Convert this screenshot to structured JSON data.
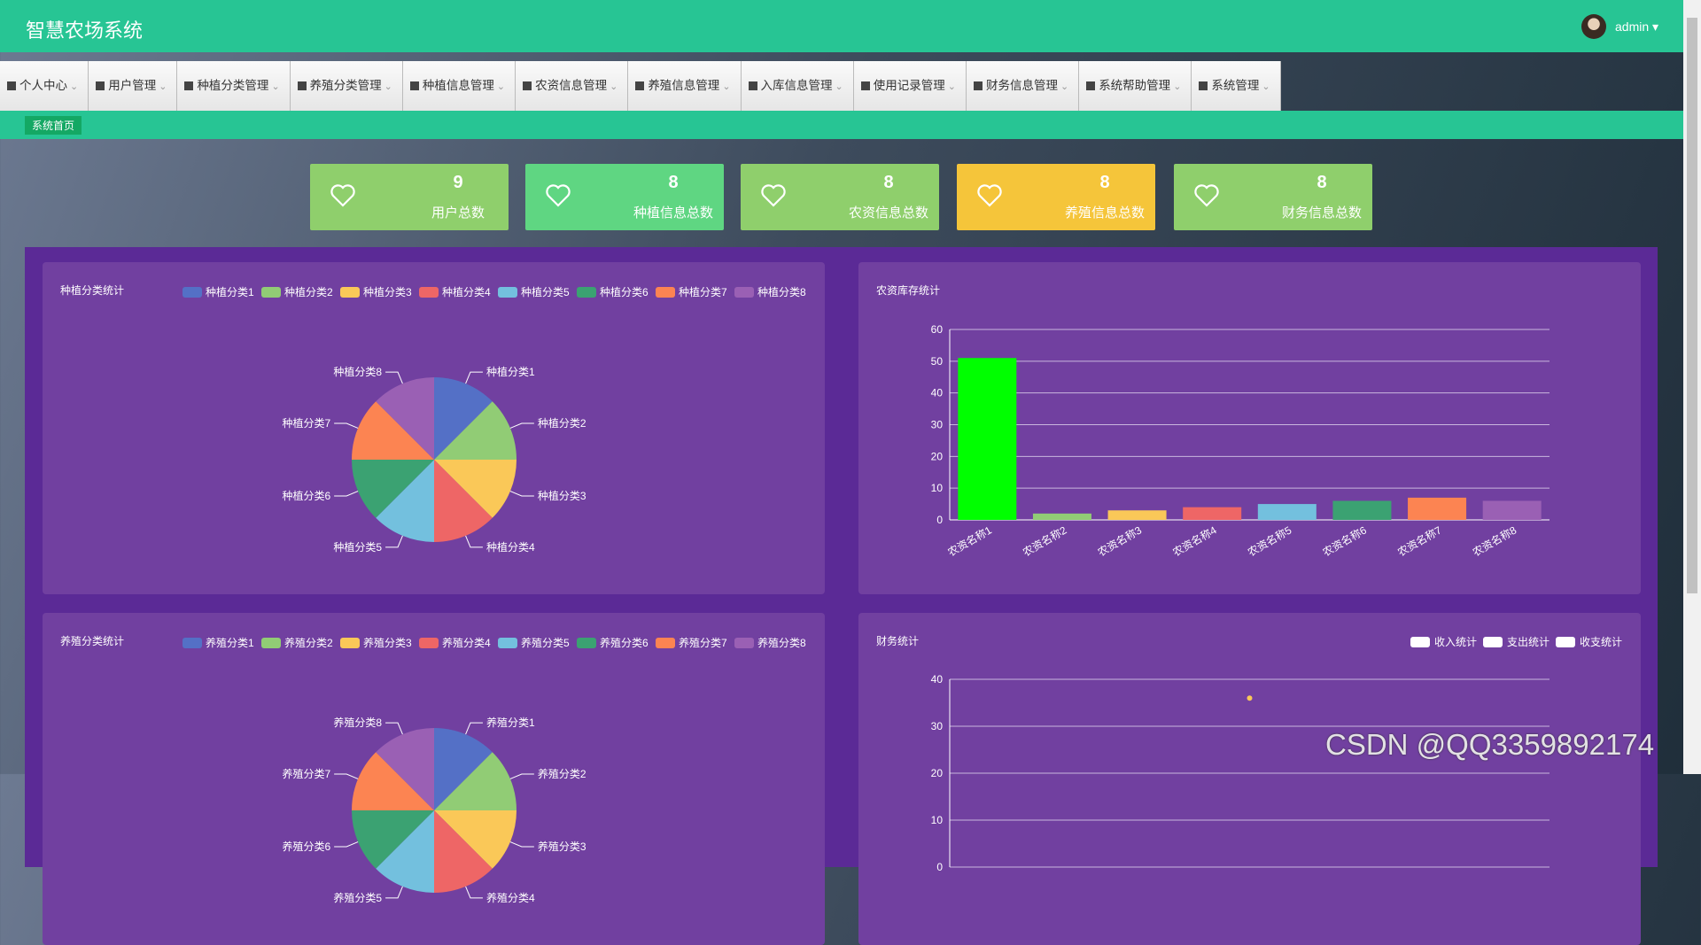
{
  "header": {
    "title": "智慧农场系统",
    "user": "admin"
  },
  "nav": {
    "items": [
      "个人中心",
      "用户管理",
      "种植分类管理",
      "养殖分类管理",
      "种植信息管理",
      "农资信息管理",
      "养殖信息管理",
      "入库信息管理",
      "使用记录管理",
      "财务信息管理",
      "系统帮助管理",
      "系统管理"
    ]
  },
  "breadcrumb": "系统首页",
  "stats": [
    {
      "value": 9,
      "label": "用户总数",
      "color": "#8fcf6c"
    },
    {
      "value": 8,
      "label": "种植信息总数",
      "color": "#5fd682"
    },
    {
      "value": 8,
      "label": "农资信息总数",
      "color": "#8fcf6c"
    },
    {
      "value": 8,
      "label": "养殖信息总数",
      "color": "#f5c53a"
    },
    {
      "value": 8,
      "label": "财务信息总数",
      "color": "#8fcf6c"
    }
  ],
  "chart_data": [
    {
      "type": "pie",
      "title": "种植分类统计",
      "categories": [
        "种植分类1",
        "种植分类2",
        "种植分类3",
        "种植分类4",
        "种植分类5",
        "种植分类6",
        "种植分类7",
        "种植分类8"
      ],
      "values": [
        1,
        1,
        1,
        1,
        1,
        1,
        1,
        1
      ],
      "colors": [
        "#5470c6",
        "#91cc75",
        "#fac858",
        "#ee6666",
        "#73c0de",
        "#3ba272",
        "#fc8452",
        "#9a60b4"
      ]
    },
    {
      "type": "bar",
      "title": "农资库存统计",
      "categories": [
        "农资名称1",
        "农资名称2",
        "农资名称3",
        "农资名称4",
        "农资名称5",
        "农资名称6",
        "农资名称7",
        "农资名称8"
      ],
      "values": [
        51,
        2,
        3,
        4,
        5,
        6,
        7,
        6
      ],
      "colors": [
        "#00ff00",
        "#91cc75",
        "#fac858",
        "#ee6666",
        "#73c0de",
        "#3ba272",
        "#fc8452",
        "#9a60b4"
      ],
      "ylim": [
        0,
        60
      ],
      "yticks": [
        0,
        10,
        20,
        30,
        40,
        50,
        60
      ],
      "grid": true
    },
    {
      "type": "pie",
      "title": "养殖分类统计",
      "categories": [
        "养殖分类1",
        "养殖分类2",
        "养殖分类3",
        "养殖分类4",
        "养殖分类5",
        "养殖分类6",
        "养殖分类7",
        "养殖分类8"
      ],
      "values": [
        1,
        1,
        1,
        1,
        1,
        1,
        1,
        1
      ],
      "colors": [
        "#5470c6",
        "#91cc75",
        "#fac858",
        "#ee6666",
        "#73c0de",
        "#3ba272",
        "#fc8452",
        "#9a60b4"
      ]
    },
    {
      "type": "line",
      "title": "财务统计",
      "categories": [
        null
      ],
      "series": [
        {
          "name": "收入统计",
          "values": [
            null
          ]
        },
        {
          "name": "支出统计",
          "values": [
            null
          ]
        },
        {
          "name": "收支统计",
          "color": "#fac858",
          "values": [
            36
          ]
        }
      ],
      "ylim": [
        0,
        40
      ],
      "yticks": [
        0,
        10,
        20,
        30,
        40
      ],
      "grid": true
    }
  ],
  "watermark": "CSDN @QQ3359892174"
}
